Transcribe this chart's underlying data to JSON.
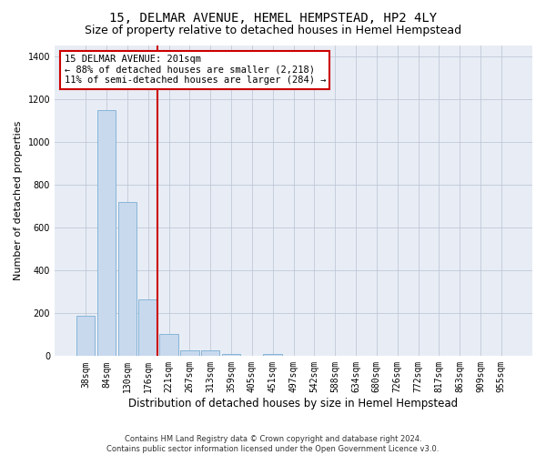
{
  "title": "15, DELMAR AVENUE, HEMEL HEMPSTEAD, HP2 4LY",
  "subtitle": "Size of property relative to detached houses in Hemel Hempstead",
  "xlabel": "Distribution of detached houses by size in Hemel Hempstead",
  "ylabel": "Number of detached properties",
  "footer_line1": "Contains HM Land Registry data © Crown copyright and database right 2024.",
  "footer_line2": "Contains public sector information licensed under the Open Government Licence v3.0.",
  "categories": [
    "38sqm",
    "84sqm",
    "130sqm",
    "176sqm",
    "221sqm",
    "267sqm",
    "313sqm",
    "359sqm",
    "405sqm",
    "451sqm",
    "497sqm",
    "542sqm",
    "588sqm",
    "634sqm",
    "680sqm",
    "726sqm",
    "772sqm",
    "817sqm",
    "863sqm",
    "909sqm",
    "955sqm"
  ],
  "values": [
    190,
    1150,
    720,
    265,
    105,
    28,
    25,
    12,
    0,
    12,
    0,
    0,
    0,
    0,
    0,
    0,
    0,
    0,
    0,
    0,
    0
  ],
  "bar_color": "#c8d9ee",
  "bar_edge_color": "#7aaed4",
  "vline_color": "#cc0000",
  "vline_pos": 3.45,
  "annotation_text": "15 DELMAR AVENUE: 201sqm\n← 88% of detached houses are smaller (2,218)\n11% of semi-detached houses are larger (284) →",
  "annotation_box_color": "#ffffff",
  "annotation_box_edge": "#cc0000",
  "ylim": [
    0,
    1450
  ],
  "yticks": [
    0,
    200,
    400,
    600,
    800,
    1000,
    1200,
    1400
  ],
  "grid_color": "#c0c8d8",
  "bg_color": "#e8edf5",
  "title_fontsize": 10,
  "subtitle_fontsize": 9,
  "xlabel_fontsize": 8.5,
  "ylabel_fontsize": 8,
  "footer_fontsize": 6,
  "tick_fontsize": 7
}
